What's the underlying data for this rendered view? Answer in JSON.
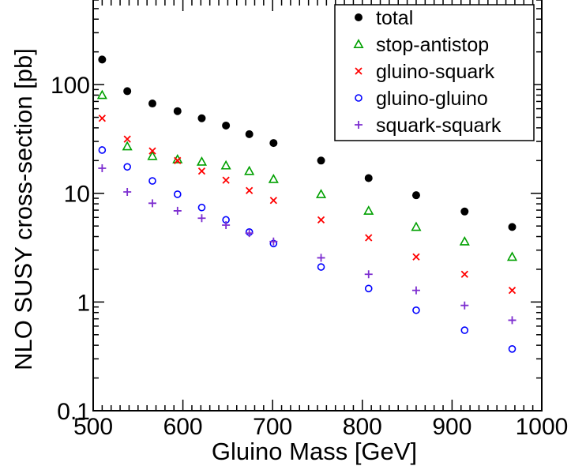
{
  "chart_data": {
    "type": "scatter",
    "title": "",
    "xlabel": "Gluino Mass  [GeV]",
    "ylabel": "NLO SUSY cross-section  [pb]",
    "xlim": [
      500,
      1000
    ],
    "ylim": [
      0.1,
      600
    ],
    "yscale": "log",
    "x_ticks": [
      "500",
      "600",
      "700",
      "800",
      "900",
      "1000"
    ],
    "y_ticks": [
      "0.1",
      "1",
      "10",
      "100"
    ],
    "grid": false,
    "legend_position": "top-right",
    "x": [
      510,
      538,
      566,
      594,
      621,
      648,
      674,
      701,
      754,
      807,
      860,
      914,
      967
    ],
    "series": [
      {
        "name": "total",
        "marker": "filled-circle",
        "color": "#000000",
        "values": [
          170,
          87,
          67,
          57,
          49,
          42,
          35,
          29,
          20,
          13.8,
          9.6,
          6.8,
          4.9
        ]
      },
      {
        "name": "stop-antistop",
        "marker": "triangle",
        "color": "#00a000",
        "values": [
          80,
          27,
          22,
          20.5,
          19.5,
          18,
          16,
          13.5,
          9.8,
          6.9,
          4.9,
          3.6,
          2.6
        ]
      },
      {
        "name": "gluino-squark",
        "marker": "cross",
        "color": "#ff0000",
        "values": [
          49,
          31.5,
          24.5,
          20,
          16,
          13.2,
          10.6,
          8.6,
          5.7,
          3.9,
          2.6,
          1.8,
          1.28
        ]
      },
      {
        "name": "gluino-gluino",
        "marker": "open-circle",
        "color": "#0000ff",
        "values": [
          25,
          17.5,
          13,
          9.8,
          7.4,
          5.7,
          4.4,
          3.45,
          2.1,
          1.33,
          0.84,
          0.55,
          0.37
        ]
      },
      {
        "name": "squark-squark",
        "marker": "plus",
        "color": "#7d2ed0",
        "values": [
          17,
          10.3,
          8.1,
          6.9,
          5.9,
          5.1,
          4.3,
          3.6,
          2.55,
          1.8,
          1.28,
          0.93,
          0.68
        ]
      }
    ]
  }
}
